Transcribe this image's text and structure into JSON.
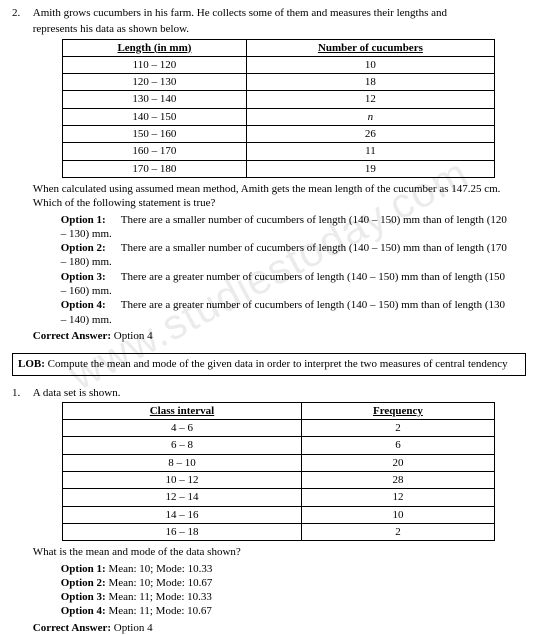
{
  "watermark": "www.studiestoday.com",
  "q2": {
    "number": "2.",
    "intro1": "Amith grows cucumbers in his farm. He collects some of them and measures their lengths and",
    "intro2": "represents his data as shown below.",
    "table": {
      "head_left": "Length (in mm)",
      "head_right": "Number of cucumbers",
      "rows": [
        [
          "110 – 120",
          "10"
        ],
        [
          "120 – 130",
          "18"
        ],
        [
          "130 – 140",
          "12"
        ],
        [
          "140 – 150",
          "n"
        ],
        [
          "150 – 160",
          "26"
        ],
        [
          "160 – 170",
          "11"
        ],
        [
          "170 – 180",
          "19"
        ]
      ]
    },
    "after1": "When calculated using assumed mean method, Amith gets the mean length of the cucumber as 147.25 cm.",
    "after2": "Which of the following statement is true?",
    "options": [
      {
        "label": "Option 1:",
        "text1": "There are a smaller number of cucumbers of length (140 – 150) mm than of length (120",
        "text2": "– 130) mm."
      },
      {
        "label": "Option 2:",
        "text1": "There are a smaller number of cucumbers of length (140 – 150) mm than of length (170",
        "text2": "– 180) mm."
      },
      {
        "label": "Option 3:",
        "text1": "There are a greater number of cucumbers of length (140 – 150) mm than of length (150",
        "text2": "– 160) mm."
      },
      {
        "label": "Option 4:",
        "text1": "There are a greater number of cucumbers of length (140 – 150) mm than of length (130",
        "text2": "– 140) mm."
      }
    ],
    "answer_label": "Correct Answer:",
    "answer_value": " Option 4"
  },
  "lob": {
    "label": "LOB:",
    "text": " Compute the mean and mode of the given data in order to interpret the two measures of central tendency"
  },
  "q1": {
    "number": "1.",
    "intro": "A data set is shown.",
    "table": {
      "head_left": "Class interval",
      "head_right": "Frequency",
      "rows": [
        [
          "4 – 6",
          "2"
        ],
        [
          "6 – 8",
          "6"
        ],
        [
          "8 – 10",
          "20"
        ],
        [
          "10 – 12",
          "28"
        ],
        [
          "12 – 14",
          "12"
        ],
        [
          "14 – 16",
          "10"
        ],
        [
          "16 – 18",
          "2"
        ]
      ]
    },
    "after": "What is the mean and mode of the data shown?",
    "options": [
      {
        "label": "Option 1:",
        "text": " Mean: 10; Mode: 10.33"
      },
      {
        "label": "Option 2:",
        "text": " Mean: 10; Mode: 10.67"
      },
      {
        "label": "Option 3:",
        "text": " Mean: 11; Mode: 10.33"
      },
      {
        "label": "Option 4:",
        "text": " Mean: 11; Mode: 10.67"
      }
    ],
    "answer_label": "Correct Answer:",
    "answer_value": " Option 4"
  }
}
